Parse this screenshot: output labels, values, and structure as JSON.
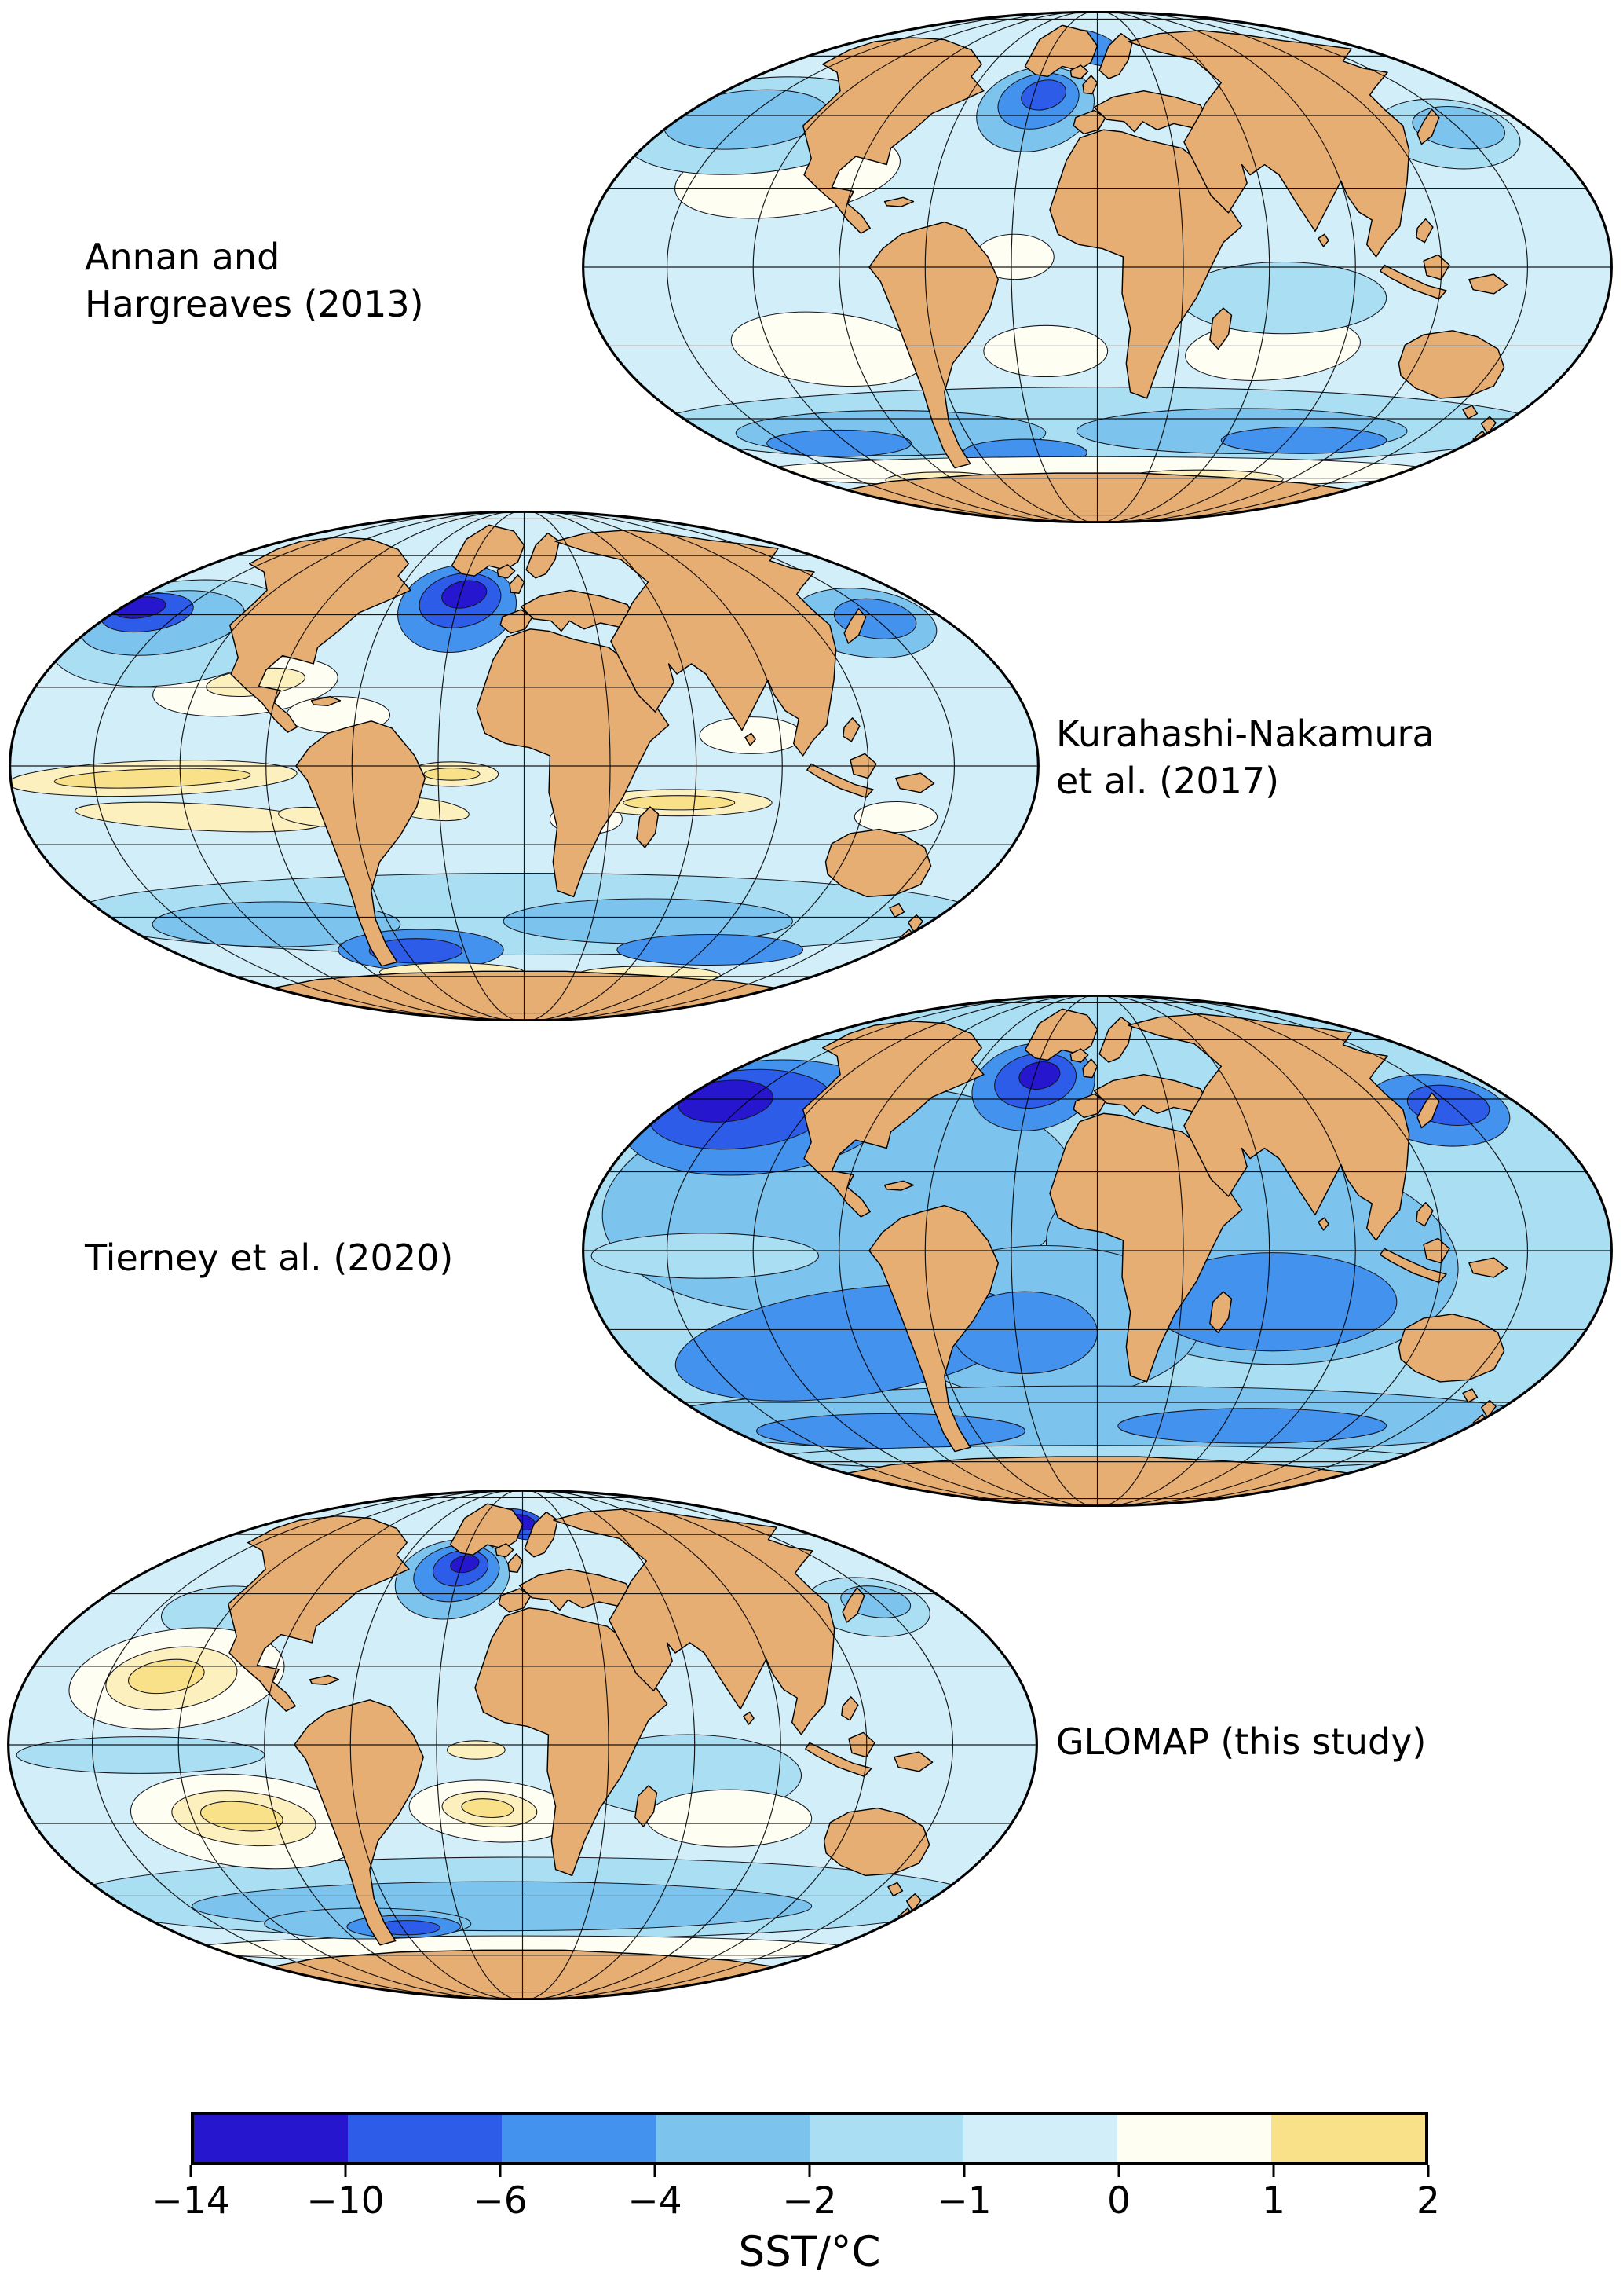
{
  "figure": {
    "panels": [
      {
        "id": "annan",
        "label": "Annan and\nHargreaves (2013)",
        "side": "left"
      },
      {
        "id": "kurahashi",
        "label": "Kurahashi-Nakamura\net al. (2017)",
        "side": "right"
      },
      {
        "id": "tierney",
        "label": "Tierney et al. (2020)",
        "side": "left"
      },
      {
        "id": "glomap",
        "label": "GLOMAP (this study)",
        "side": "right"
      }
    ],
    "colorbar": {
      "label": "SST/°C",
      "ticks": [
        "−14",
        "−10",
        "−6",
        "−4",
        "−2",
        "−1",
        "0",
        "1",
        "2"
      ],
      "colors": [
        "#2617cf",
        "#2d5ce8",
        "#4292ee",
        "#7cc4ee",
        "#a9def3",
        "#d2eff9",
        "#fffef2",
        "#f9e18a"
      ]
    },
    "colors": {
      "land": "#e7ae74",
      "coastline": "#000000",
      "graticule": "#000000",
      "background": "#ffffff",
      "pale_yellow": "#fcf0bf"
    }
  },
  "chart_data": {
    "type": "heatmap",
    "projection": "Mollweide",
    "title": "",
    "panels": [
      "Annan and Hargreaves (2013)",
      "Kurahashi-Nakamura et al. (2017)",
      "Tierney et al. (2020)",
      "GLOMAP (this study)"
    ],
    "variable": "SST/°C",
    "colorbar": {
      "label": "SST/°C",
      "tick_values": [
        -14,
        -10,
        -6,
        -4,
        -2,
        -1,
        0,
        1,
        2
      ],
      "segment_colors": [
        "#2617cf",
        "#2d5ce8",
        "#4292ee",
        "#7cc4ee",
        "#a9def3",
        "#d2eff9",
        "#fffef2",
        "#f9e18a"
      ],
      "position": "bottom"
    },
    "value_range": [
      -14,
      2
    ],
    "notes": "Four global filled-contour maps of sea-surface temperature anomaly on Mollweide projections sharing one discrete colorbar; gridded cell values are not individually labeled in the figure."
  }
}
